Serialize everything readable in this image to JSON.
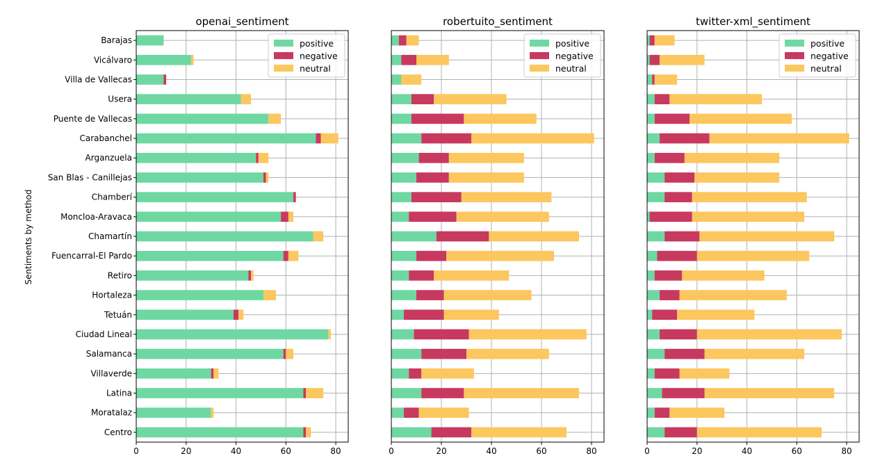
{
  "chart_data": {
    "type": "bar",
    "stacked": true,
    "orientation": "horizontal",
    "ylabel": "Sentiments by method",
    "categories": [
      "Centro",
      "Moratalaz",
      "Latina",
      "Villaverde",
      "Salamanca",
      "Ciudad Lineal",
      "Tetuán",
      "Hortaleza",
      "Retiro",
      "Fuencarral-El Pardo",
      "Chamartín",
      "Moncloa-Aravaca",
      "Chamberí",
      "San Blas - Canillejas",
      "Arganzuela",
      "Carabanchel",
      "Puente de Vallecas",
      "Usera",
      "Villa de Vallecas",
      "Vicálvaro",
      "Barajas"
    ],
    "xlim": [
      0,
      85
    ],
    "xticks": [
      0,
      20,
      40,
      60,
      80
    ],
    "grid": true,
    "legend_position": "top-right",
    "colors": {
      "positive": "#6fd8a2",
      "negative": "#c8395f",
      "neutral": "#fbc75e"
    },
    "panels": [
      {
        "title": "openai_sentiment",
        "series": [
          {
            "name": "positive",
            "values": [
              67,
              30,
              67,
              30,
              59,
              77,
              39,
              51,
              45,
              59,
              71,
              58,
              63,
              51,
              48,
              72,
              53,
              42,
              11,
              22,
              11
            ]
          },
          {
            "name": "negative",
            "values": [
              1,
              0,
              1,
              1,
              1,
              0,
              2,
              0,
              1,
              2,
              0,
              3,
              1,
              1,
              1,
              2,
              0,
              0,
              1,
              0,
              0
            ]
          },
          {
            "name": "neutral",
            "values": [
              2,
              1,
              7,
              2,
              3,
              1,
              2,
              5,
              1,
              4,
              4,
              2,
              0,
              1,
              4,
              7,
              5,
              4,
              0,
              1,
              0
            ]
          }
        ]
      },
      {
        "title": "robertuito_sentiment",
        "series": [
          {
            "name": "positive",
            "values": [
              16,
              5,
              12,
              7,
              12,
              9,
              5,
              10,
              7,
              10,
              18,
              7,
              8,
              10,
              11,
              12,
              8,
              8,
              4,
              4,
              3
            ]
          },
          {
            "name": "negative",
            "values": [
              16,
              6,
              17,
              5,
              18,
              22,
              16,
              11,
              10,
              12,
              21,
              19,
              20,
              13,
              12,
              20,
              21,
              9,
              0,
              6,
              3
            ]
          },
          {
            "name": "neutral",
            "values": [
              38,
              20,
              46,
              21,
              33,
              47,
              22,
              35,
              30,
              43,
              36,
              37,
              36,
              30,
              30,
              49,
              29,
              29,
              8,
              13,
              5
            ]
          }
        ]
      },
      {
        "title": "twitter-xml_sentiment",
        "series": [
          {
            "name": "positive",
            "values": [
              7,
              3,
              6,
              3,
              7,
              5,
              2,
              5,
              3,
              4,
              7,
              1,
              7,
              7,
              3,
              5,
              3,
              3,
              2,
              1,
              1
            ]
          },
          {
            "name": "negative",
            "values": [
              13,
              6,
              17,
              10,
              16,
              15,
              10,
              8,
              11,
              16,
              14,
              17,
              11,
              12,
              12,
              20,
              14,
              6,
              1,
              4,
              2
            ]
          },
          {
            "name": "neutral",
            "values": [
              50,
              22,
              52,
              20,
              40,
              58,
              31,
              43,
              33,
              45,
              54,
              45,
              46,
              34,
              38,
              56,
              41,
              37,
              9,
              18,
              8
            ]
          }
        ]
      }
    ]
  }
}
